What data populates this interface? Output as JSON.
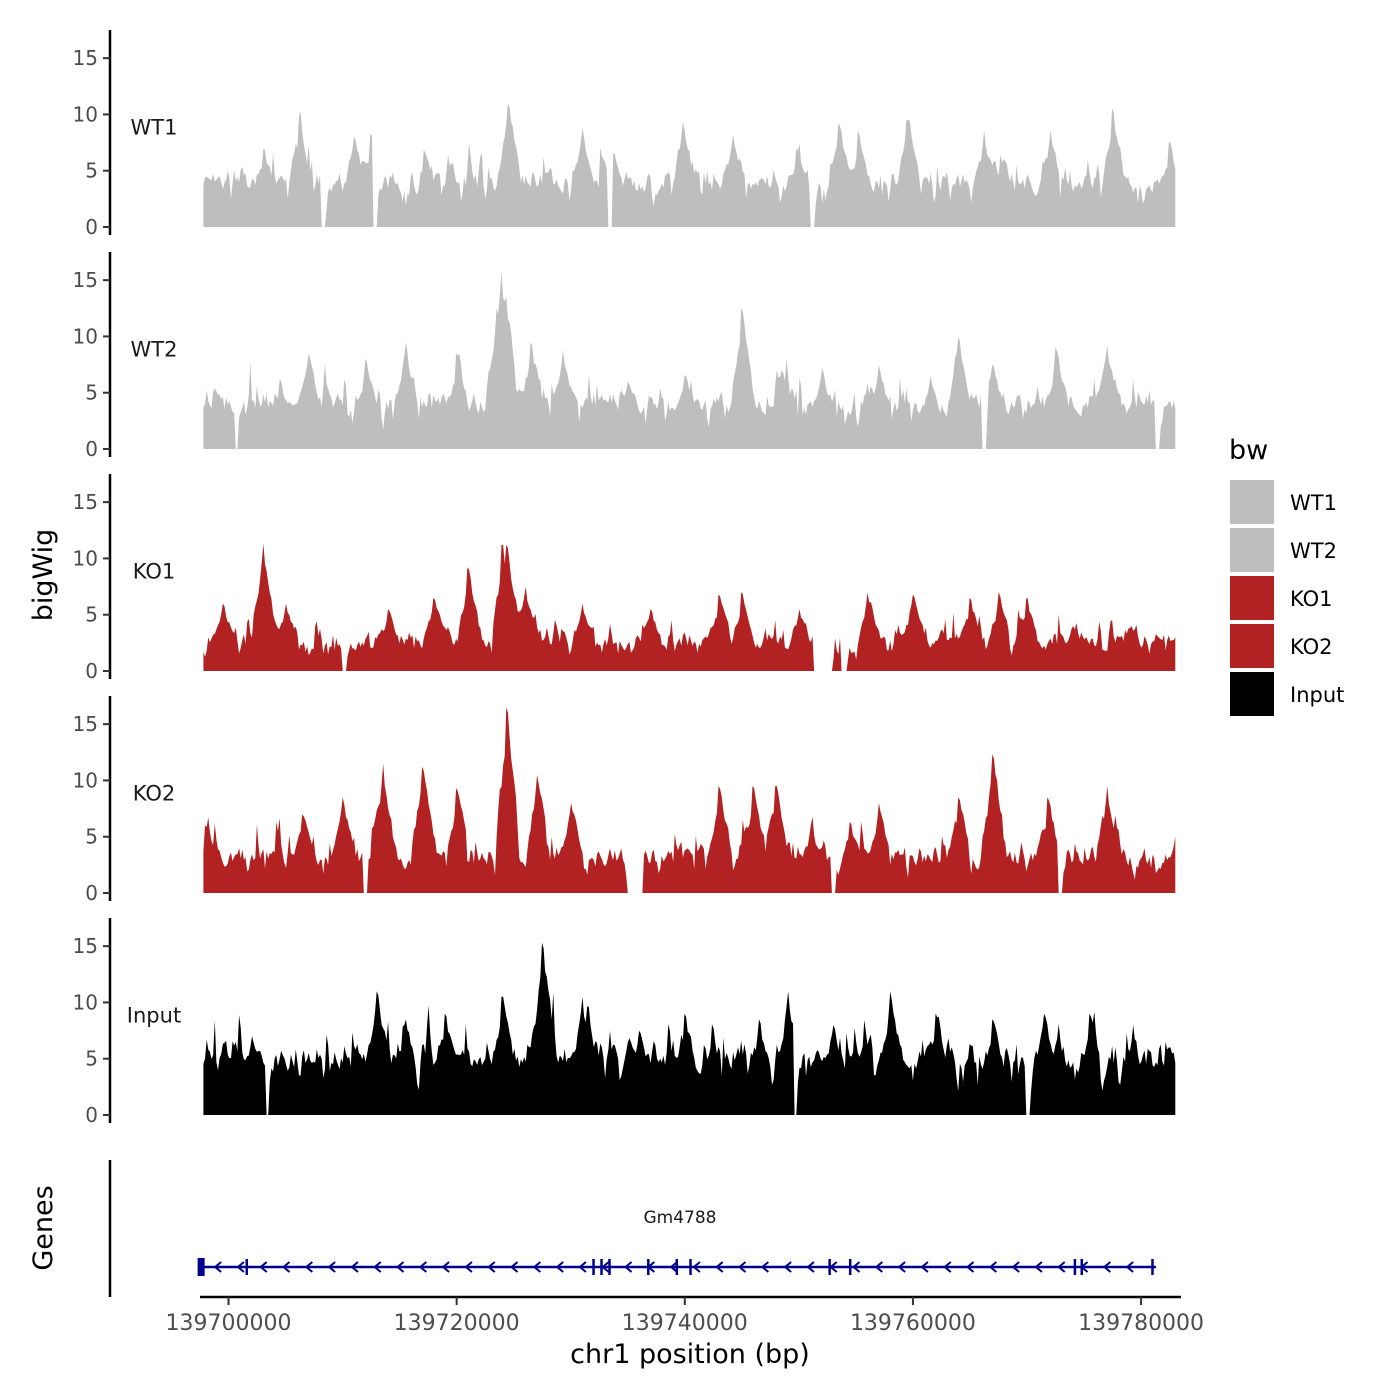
{
  "chart_data": {
    "type": "area",
    "ylabel": "bigWig",
    "xlabel": "chr1 position (bp)",
    "ylim": [
      0,
      17.5
    ],
    "y_ticks": [
      0,
      5,
      10,
      15
    ],
    "x_range": [
      139697500,
      139783500
    ],
    "x_ticks": [
      139700000,
      139720000,
      139740000,
      139760000,
      139780000
    ],
    "x_tick_labels": [
      "139700000",
      "139720000",
      "139740000",
      "139760000",
      "139780000"
    ],
    "series": [
      {
        "name": "WT1",
        "color": "#bebebe",
        "peaks": [
          [
            139697600,
            6.8
          ],
          [
            139703100,
            7.0
          ],
          [
            139706200,
            9.8
          ],
          [
            139711000,
            8.0
          ],
          [
            139712500,
            8.2
          ],
          [
            139724500,
            11.0
          ],
          [
            139731000,
            8.8
          ],
          [
            139733800,
            6.5
          ],
          [
            139739800,
            9.3
          ],
          [
            139744200,
            8.2
          ],
          [
            139749800,
            7.0
          ],
          [
            139753500,
            9.2
          ],
          [
            139755200,
            8.5
          ],
          [
            139759500,
            9.5
          ],
          [
            139766200,
            8.6
          ],
          [
            139768000,
            6.0
          ],
          [
            139772000,
            8.6
          ],
          [
            139777500,
            10.5
          ],
          [
            139782500,
            7.5
          ]
        ],
        "base": 2.6,
        "amp": 4.2,
        "seed": 11,
        "gaps": [
          [
            139708100,
            139708500
          ],
          [
            139712700,
            139713100
          ],
          [
            139733300,
            139733700
          ],
          [
            139751000,
            139751400
          ]
        ]
      },
      {
        "name": "WT2",
        "color": "#bebebe",
        "peaks": [
          [
            139697600,
            6.2
          ],
          [
            139704500,
            6.2
          ],
          [
            139707000,
            8.5
          ],
          [
            139712000,
            8.0
          ],
          [
            139715500,
            9.5
          ],
          [
            139720000,
            8.5
          ],
          [
            139723500,
            12.5
          ],
          [
            139723900,
            15.8
          ],
          [
            139724300,
            13.5
          ],
          [
            139726500,
            9.5
          ],
          [
            139729300,
            8.8
          ],
          [
            139735000,
            6.0
          ],
          [
            139740000,
            6.5
          ],
          [
            139745000,
            12.5
          ],
          [
            139748500,
            7.0
          ],
          [
            139752000,
            7.2
          ],
          [
            139757000,
            7.5
          ],
          [
            139761500,
            6.5
          ],
          [
            139764000,
            9.9
          ],
          [
            139767000,
            7.5
          ],
          [
            139772500,
            9.0
          ],
          [
            139777000,
            9.2
          ],
          [
            139782500,
            4.2
          ]
        ],
        "base": 2.6,
        "amp": 4.0,
        "seed": 23,
        "gaps": [
          [
            139700500,
            139700900
          ],
          [
            139766000,
            139766400
          ],
          [
            139781200,
            139781600
          ]
        ]
      },
      {
        "name": "KO1",
        "color": "#b22222",
        "peaks": [
          [
            139699500,
            6.0
          ],
          [
            139703000,
            11.3
          ],
          [
            139705000,
            6.0
          ],
          [
            139714000,
            5.5
          ],
          [
            139718000,
            6.5
          ],
          [
            139721000,
            9.2
          ],
          [
            139724000,
            11.2
          ],
          [
            139724400,
            11.2
          ],
          [
            139726000,
            7.5
          ],
          [
            139731000,
            6.0
          ],
          [
            139737000,
            5.5
          ],
          [
            139743000,
            6.8
          ],
          [
            139745000,
            7.0
          ],
          [
            139750000,
            5.5
          ],
          [
            139756000,
            7.0
          ],
          [
            139760000,
            6.8
          ],
          [
            139765000,
            6.5
          ],
          [
            139767500,
            7.0
          ],
          [
            139770000,
            6.5
          ],
          [
            139774000,
            4.0
          ],
          [
            139779000,
            3.8
          ]
        ],
        "base": 1.6,
        "amp": 3.2,
        "seed": 37,
        "gaps": [
          [
            139710000,
            139710300
          ],
          [
            139751200,
            139753000
          ],
          [
            139753700,
            139754300
          ]
        ]
      },
      {
        "name": "KO2",
        "color": "#b22222",
        "peaks": [
          [
            139698000,
            6.0
          ],
          [
            139706500,
            7.0
          ],
          [
            139710000,
            8.5
          ],
          [
            139713500,
            11.5
          ],
          [
            139717000,
            11.2
          ],
          [
            139720000,
            9.3
          ],
          [
            139724400,
            16.5
          ],
          [
            139727000,
            10.5
          ],
          [
            139730000,
            8.0
          ],
          [
            139736000,
            4.5
          ],
          [
            139743000,
            9.5
          ],
          [
            139746000,
            9.5
          ],
          [
            139748000,
            9.5
          ],
          [
            139751000,
            6.0
          ],
          [
            139754500,
            6.3
          ],
          [
            139757000,
            8.0
          ],
          [
            139764000,
            8.5
          ],
          [
            139767000,
            12.3
          ],
          [
            139771800,
            8.5
          ],
          [
            139777000,
            9.5
          ],
          [
            139783000,
            5.0
          ]
        ],
        "base": 1.9,
        "amp": 3.8,
        "seed": 51,
        "gaps": [
          [
            139711800,
            139712200
          ],
          [
            139735000,
            139736300
          ],
          [
            139752800,
            139753200
          ],
          [
            139772700,
            139773200
          ]
        ]
      },
      {
        "name": "Input",
        "color": "#000000",
        "peaks": [
          [
            139697600,
            6.3
          ],
          [
            139702000,
            7.0
          ],
          [
            139707000,
            5.5
          ],
          [
            139713000,
            11.0
          ],
          [
            139715500,
            8.5
          ],
          [
            139719000,
            9.0
          ],
          [
            139724000,
            10.5
          ],
          [
            139727500,
            15.3
          ],
          [
            139731000,
            10.5
          ],
          [
            139736000,
            7.5
          ],
          [
            139740000,
            9.0
          ],
          [
            139746500,
            8.5
          ],
          [
            139749000,
            11.0
          ],
          [
            139753000,
            8.0
          ],
          [
            139758000,
            11.0
          ],
          [
            139762000,
            9.0
          ],
          [
            139767000,
            8.5
          ],
          [
            139771500,
            9.0
          ],
          [
            139775500,
            9.0
          ],
          [
            139782500,
            6.0
          ]
        ],
        "base": 3.4,
        "amp": 4.6,
        "seed": 67,
        "gaps": [
          [
            139703300,
            139703600
          ],
          [
            139749600,
            139749900
          ],
          [
            139769900,
            139770300
          ]
        ]
      }
    ],
    "legend": {
      "title": "bw",
      "position": "right",
      "items": [
        {
          "label": "WT1",
          "color": "#bebebe"
        },
        {
          "label": "WT2",
          "color": "#bebebe"
        },
        {
          "label": "KO1",
          "color": "#b22222"
        },
        {
          "label": "KO2",
          "color": "#b22222"
        },
        {
          "label": "Input",
          "color": "#000000"
        }
      ]
    },
    "genes_track": {
      "title": "Genes",
      "gene_name": "Gm4788",
      "color": "#00008b",
      "start": 139697600,
      "end": 139781300,
      "strand": "-",
      "exons": [
        139697600,
        139701600,
        139732000,
        139732700,
        139733400,
        139736800,
        139739300,
        139740500,
        139752700,
        139754500,
        139774200,
        139774800,
        139781000
      ]
    }
  }
}
